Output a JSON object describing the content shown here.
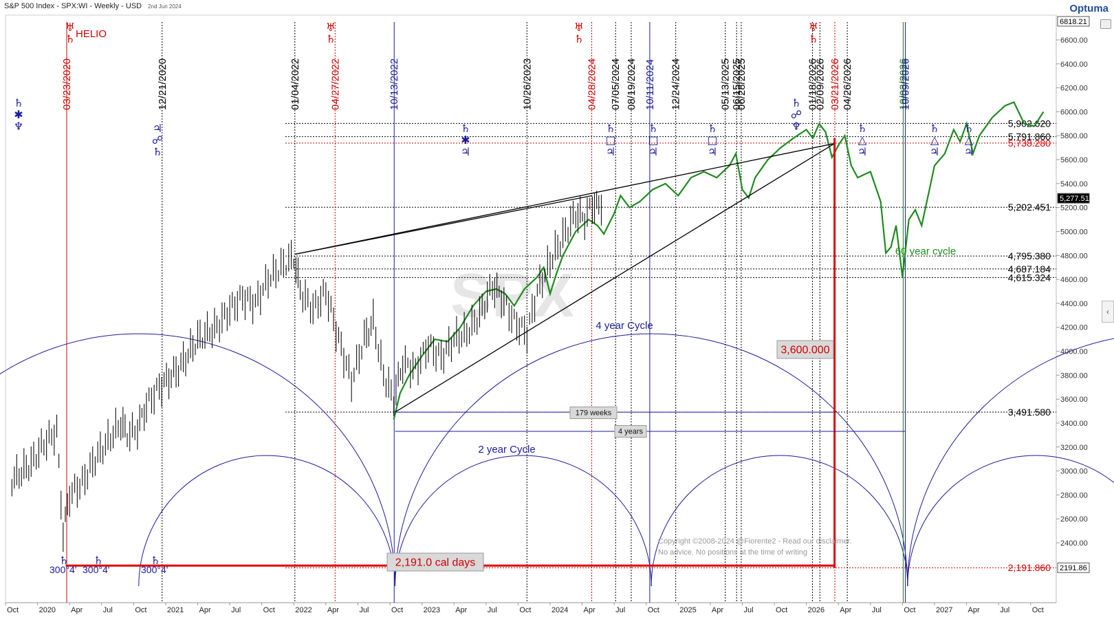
{
  "header": {
    "title": "S&P 500 Index - SPX:WI - Weekly - USD",
    "date": "2nd Jun 2024",
    "logo": "Optuma"
  },
  "chart_data": {
    "type": "line",
    "x_axis_labels": [
      "Oct",
      "2020",
      "Apr",
      "Jul",
      "Oct",
      "2021",
      "Apr",
      "Jul",
      "Oct",
      "2022",
      "Apr",
      "Jul",
      "Oct",
      "2023",
      "Apr",
      "Jul",
      "Oct",
      "2024",
      "Apr",
      "Jul",
      "Oct",
      "2025",
      "Apr",
      "Jul",
      "Oct",
      "2026",
      "Apr",
      "Jul",
      "Oct",
      "2027",
      "Apr",
      "Jul",
      "Oct"
    ],
    "y_ticks": [
      "6600.00",
      "6400.00",
      "6200.00",
      "6000.00",
      "5800.00",
      "5600.00",
      "5400.00",
      "5200.00",
      "5000.00",
      "4800.00",
      "4600.00",
      "4400.00",
      "4200.00",
      "4000.00",
      "3800.00",
      "3600.00",
      "3400.00",
      "3200.00",
      "3000.00",
      "2800.00",
      "2600.00",
      "2400.00"
    ],
    "y_boxes": {
      "top": "6818.21",
      "last": "5,277.51",
      "bottom": "2191.86"
    },
    "price_levels": [
      {
        "label": "5,902.620",
        "value": 5902.62,
        "color": "#000000"
      },
      {
        "label": "5,791.860",
        "value": 5791.86,
        "color": "#000000"
      },
      {
        "label": "5,738.280",
        "value": 5738.28,
        "color": "#d00000"
      },
      {
        "label": "5,202.451",
        "value": 5202.45,
        "color": "#000000"
      },
      {
        "label": "4,795.380",
        "value": 4795.38,
        "color": "#000000"
      },
      {
        "label": "4,687.184",
        "value": 4687.18,
        "color": "#000000"
      },
      {
        "label": "4,615.324",
        "value": 4615.32,
        "color": "#000000"
      },
      {
        "label": "3,491.580",
        "value": 3491.58,
        "color": "#000000"
      },
      {
        "label": "2,191.860",
        "value": 2191.86,
        "color": "#d00000"
      }
    ],
    "date_lines": [
      {
        "label": "03/23/2020",
        "color": "#d00000",
        "style": "solid"
      },
      {
        "label": "12/21/2020",
        "color": "#000000",
        "style": "dotted"
      },
      {
        "label": "01/04/2022",
        "color": "#000000",
        "style": "dotted"
      },
      {
        "label": "04/27/2022",
        "color": "#d00000",
        "style": "dotted"
      },
      {
        "label": "10/13/2022",
        "color": "#1a1a99",
        "style": "solid"
      },
      {
        "label": "10/26/2023",
        "color": "#000000",
        "style": "dotted"
      },
      {
        "label": "04/28/2024",
        "color": "#d00000",
        "style": "dotted"
      },
      {
        "label": "07/05/2024",
        "color": "#000000",
        "style": "dotted"
      },
      {
        "label": "08/19/2024",
        "color": "#000000",
        "style": "dotted"
      },
      {
        "label": "10/11/2024",
        "color": "#1a1a99",
        "style": "solid"
      },
      {
        "label": "12/24/2024",
        "color": "#000000",
        "style": "dotted"
      },
      {
        "label": "05/13/2025",
        "color": "#000000",
        "style": "dotted"
      },
      {
        "label": "06/15/2025",
        "color": "#000000",
        "style": "dotted"
      },
      {
        "label": "06/28/2025",
        "color": "#000000",
        "style": "dotted"
      },
      {
        "label": "01/18/2026",
        "color": "#000000",
        "style": "dotted"
      },
      {
        "label": "02/09/2026",
        "color": "#000000",
        "style": "dotted"
      },
      {
        "label": "03/21/2026",
        "color": "#d00000",
        "style": "dotted"
      },
      {
        "label": "04/26/2026",
        "color": "#000000",
        "style": "dotted"
      },
      {
        "label": "10/03/2026",
        "color": "#1a7a1a",
        "style": "solid"
      },
      {
        "label": "10/09/2026",
        "color": "#1a1a99",
        "style": "solid"
      }
    ],
    "annotations": {
      "helio": "HELIO",
      "four_year": "4 year Cycle",
      "two_year": "2 year Cycle",
      "sixty_year": "60 year cycle",
      "days_box": "2,191.0 cal days",
      "price_box": "3,600.000",
      "weeks_box": "179 weeks",
      "years_box": "4 years",
      "deg1": "300°4'",
      "deg2": "300°4'",
      "deg3": "300°4'",
      "copyright": "Copyright ©2008-2024 @Fiorente2 - Read our disclaimer.",
      "noadvice": "No advice. No positions at the time of writing",
      "watermark": "SPX"
    },
    "symbols": {
      "saturn": "♄",
      "uranus": "♅",
      "jupiter": "♃",
      "neptune": "♆",
      "sextile": "✱",
      "opposition": "☍",
      "square": "□",
      "trine": "△"
    },
    "price_series_close": [
      [
        2019.8,
        2920
      ],
      [
        2019.95,
        3060
      ],
      [
        2020.05,
        3230
      ],
      [
        2020.15,
        3330
      ],
      [
        2020.2,
        2480
      ],
      [
        2020.25,
        2800
      ],
      [
        2020.35,
        2900
      ],
      [
        2020.45,
        3100
      ],
      [
        2020.55,
        3250
      ],
      [
        2020.65,
        3400
      ],
      [
        2020.7,
        3300
      ],
      [
        2020.78,
        3350
      ],
      [
        2020.85,
        3550
      ],
      [
        2020.95,
        3700
      ],
      [
        2021.1,
        3850
      ],
      [
        2021.25,
        4100
      ],
      [
        2021.4,
        4200
      ],
      [
        2021.5,
        4350
      ],
      [
        2021.6,
        4450
      ],
      [
        2021.7,
        4400
      ],
      [
        2021.8,
        4600
      ],
      [
        2021.9,
        4700
      ],
      [
        2022.0,
        4790
      ],
      [
        2022.05,
        4500
      ],
      [
        2022.15,
        4350
      ],
      [
        2022.25,
        4500
      ],
      [
        2022.35,
        4100
      ],
      [
        2022.45,
        3750
      ],
      [
        2022.55,
        4100
      ],
      [
        2022.62,
        4250
      ],
      [
        2022.7,
        3800
      ],
      [
        2022.78,
        3600
      ],
      [
        2022.85,
        3900
      ],
      [
        2022.95,
        3850
      ],
      [
        2023.05,
        4050
      ],
      [
        2023.15,
        3950
      ],
      [
        2023.25,
        4100
      ],
      [
        2023.35,
        4150
      ],
      [
        2023.45,
        4300
      ],
      [
        2023.55,
        4550
      ],
      [
        2023.62,
        4450
      ],
      [
        2023.72,
        4250
      ],
      [
        2023.82,
        4150
      ],
      [
        2023.9,
        4500
      ],
      [
        2024.0,
        4750
      ],
      [
        2024.1,
        4950
      ],
      [
        2024.2,
        5150
      ],
      [
        2024.27,
        5100
      ],
      [
        2024.33,
        5230
      ],
      [
        2024.38,
        5200
      ],
      [
        2024.42,
        5277
      ]
    ],
    "projection_series": [
      [
        2022.78,
        3430
      ],
      [
        2022.83,
        3650
      ],
      [
        2022.9,
        3800
      ],
      [
        2023.0,
        3960
      ],
      [
        2023.1,
        4100
      ],
      [
        2023.2,
        4080
      ],
      [
        2023.3,
        4200
      ],
      [
        2023.4,
        4380
      ],
      [
        2023.5,
        4500
      ],
      [
        2023.58,
        4520
      ],
      [
        2023.65,
        4480
      ],
      [
        2023.72,
        4380
      ],
      [
        2023.8,
        4520
      ],
      [
        2023.9,
        4620
      ],
      [
        2023.95,
        4700
      ],
      [
        2024.0,
        4480
      ],
      [
        2024.05,
        4650
      ],
      [
        2024.1,
        4800
      ],
      [
        2024.15,
        4900
      ],
      [
        2024.2,
        5000
      ],
      [
        2024.3,
        5100
      ],
      [
        2024.37,
        5050
      ],
      [
        2024.42,
        4980
      ],
      [
        2024.5,
        5150
      ],
      [
        2024.55,
        5300
      ],
      [
        2024.62,
        5200
      ],
      [
        2024.7,
        5250
      ],
      [
        2024.8,
        5350
      ],
      [
        2024.9,
        5400
      ],
      [
        2025.0,
        5300
      ],
      [
        2025.1,
        5450
      ],
      [
        2025.2,
        5500
      ],
      [
        2025.3,
        5450
      ],
      [
        2025.4,
        5550
      ],
      [
        2025.45,
        5650
      ],
      [
        2025.5,
        5350
      ],
      [
        2025.55,
        5280
      ],
      [
        2025.6,
        5450
      ],
      [
        2025.7,
        5600
      ],
      [
        2025.8,
        5700
      ],
      [
        2025.9,
        5780
      ],
      [
        2026.0,
        5850
      ],
      [
        2026.05,
        5780
      ],
      [
        2026.1,
        5900
      ],
      [
        2026.15,
        5830
      ],
      [
        2026.2,
        5620
      ],
      [
        2026.25,
        5720
      ],
      [
        2026.3,
        5800
      ],
      [
        2026.35,
        5550
      ],
      [
        2026.4,
        5450
      ],
      [
        2026.5,
        5500
      ],
      [
        2026.58,
        5250
      ],
      [
        2026.62,
        4820
      ],
      [
        2026.66,
        4870
      ],
      [
        2026.7,
        5050
      ],
      [
        2026.75,
        4620
      ],
      [
        2026.8,
        5100
      ],
      [
        2026.85,
        5180
      ],
      [
        2026.9,
        5050
      ],
      [
        2026.95,
        5300
      ],
      [
        2027.0,
        5550
      ],
      [
        2027.08,
        5650
      ],
      [
        2027.15,
        5850
      ],
      [
        2027.2,
        5750
      ],
      [
        2027.25,
        5900
      ],
      [
        2027.3,
        5650
      ],
      [
        2027.35,
        5800
      ],
      [
        2027.45,
        5950
      ],
      [
        2027.55,
        6050
      ],
      [
        2027.62,
        6080
      ],
      [
        2027.7,
        5900
      ],
      [
        2027.78,
        5880
      ],
      [
        2027.85,
        6000
      ]
    ]
  }
}
